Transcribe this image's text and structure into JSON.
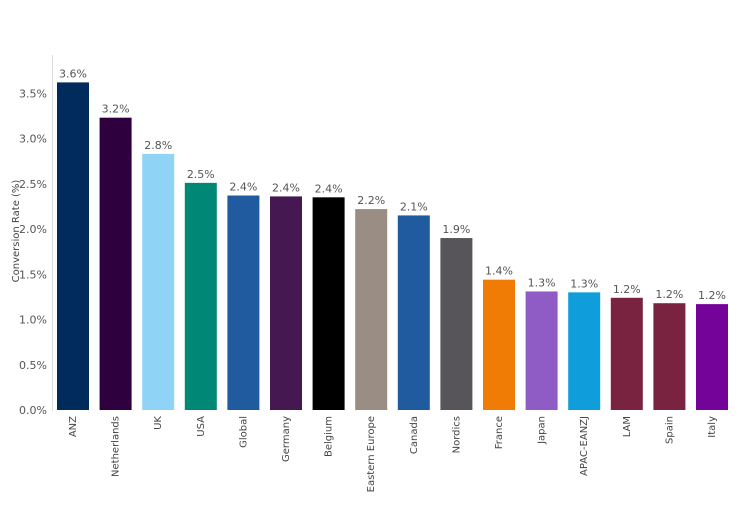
{
  "chart_data": {
    "type": "bar",
    "title": "",
    "xlabel": "",
    "ylabel": "Conversion Rate (%)",
    "ylim": [
      0,
      3.7
    ],
    "yticks": [
      0.0,
      0.5,
      1.0,
      1.5,
      2.0,
      2.5,
      3.0,
      3.5
    ],
    "ytick_labels": [
      "0.0%",
      "0.5%",
      "1.0%",
      "1.5%",
      "2.0%",
      "2.5%",
      "3.0%",
      "3.5%"
    ],
    "grid": false,
    "categories": [
      "ANZ",
      "Netherlands",
      "UK",
      "USA",
      "Global",
      "Germany",
      "Belgium",
      "Eastern Europe",
      "Canada",
      "Nordics",
      "France",
      "Japan",
      "APAC-EANZJ",
      "LAM",
      "Spain",
      "Italy"
    ],
    "values": [
      3.62,
      3.23,
      2.83,
      2.51,
      2.37,
      2.36,
      2.35,
      2.22,
      2.15,
      1.9,
      1.44,
      1.31,
      1.3,
      1.24,
      1.18,
      1.17
    ],
    "data_labels": [
      "3.6%",
      "3.2%",
      "2.8%",
      "2.5%",
      "2.4%",
      "2.4%",
      "2.4%",
      "2.2%",
      "2.1%",
      "1.9%",
      "1.4%",
      "1.3%",
      "1.3%",
      "1.2%",
      "1.2%",
      "1.2%"
    ],
    "colors": [
      "#002b5c",
      "#2e003e",
      "#8fd3f7",
      "#008776",
      "#1f5b9e",
      "#451851",
      "#000000",
      "#998d84",
      "#1f5b9e",
      "#57555a",
      "#f07b05",
      "#8f5cc6",
      "#0f9ddb",
      "#7a2340",
      "#7a2340",
      "#740399"
    ]
  }
}
